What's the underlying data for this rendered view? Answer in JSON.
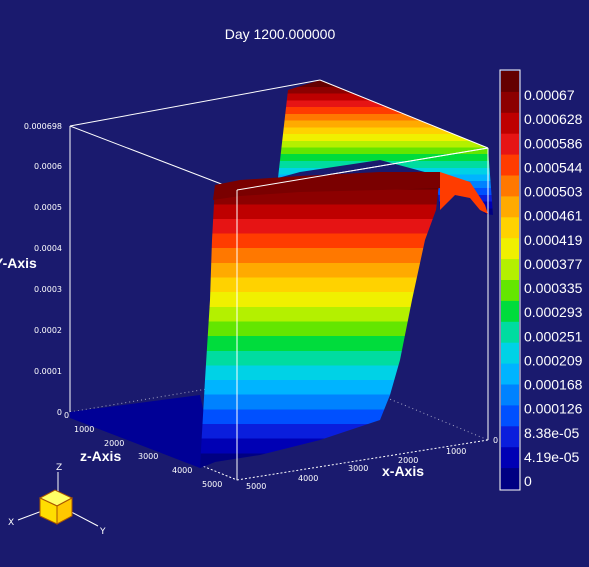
{
  "title": "Day 1200.000000",
  "chart_data": {
    "type": "surface3d",
    "title": "Day 1200.000000",
    "axes": {
      "x": {
        "label": "x-Axis",
        "ticks": [
          "0",
          "1000",
          "2000",
          "3000",
          "4000",
          "5000"
        ]
      },
      "y": {
        "label": "Y-Axis",
        "ticks": [
          "0",
          "0.0001",
          "0.0002",
          "0.0003",
          "0.0004",
          "0.0005",
          "0.0006",
          "0.000698"
        ]
      },
      "z": {
        "label": "z-Axis",
        "ticks": [
          "0",
          "1000",
          "2000",
          "3000",
          "4000",
          "5000"
        ]
      }
    },
    "value_range": [
      0,
      0.000698
    ],
    "colorbar": {
      "labels": [
        "0.00067",
        "0.000628",
        "0.000586",
        "0.000544",
        "0.000503",
        "0.000461",
        "0.000419",
        "0.000377",
        "0.000335",
        "0.000293",
        "0.000251",
        "0.000209",
        "0.000168",
        "0.000126",
        "8.38e-05",
        "4.19e-05",
        "0"
      ],
      "colors": [
        "#640000",
        "#8c0000",
        "#be0000",
        "#e61414",
        "#ff3c00",
        "#ff7800",
        "#ffaa00",
        "#ffd200",
        "#f0f000",
        "#b4f000",
        "#64e600",
        "#00dc3c",
        "#00dca0",
        "#00d2e6",
        "#00b4ff",
        "#0082ff",
        "#0050ff",
        "#0a1edc",
        "#0000b4",
        "#000082"
      ]
    },
    "orientation_axes": {
      "labels": [
        "Z",
        "X",
        "Y"
      ]
    }
  }
}
